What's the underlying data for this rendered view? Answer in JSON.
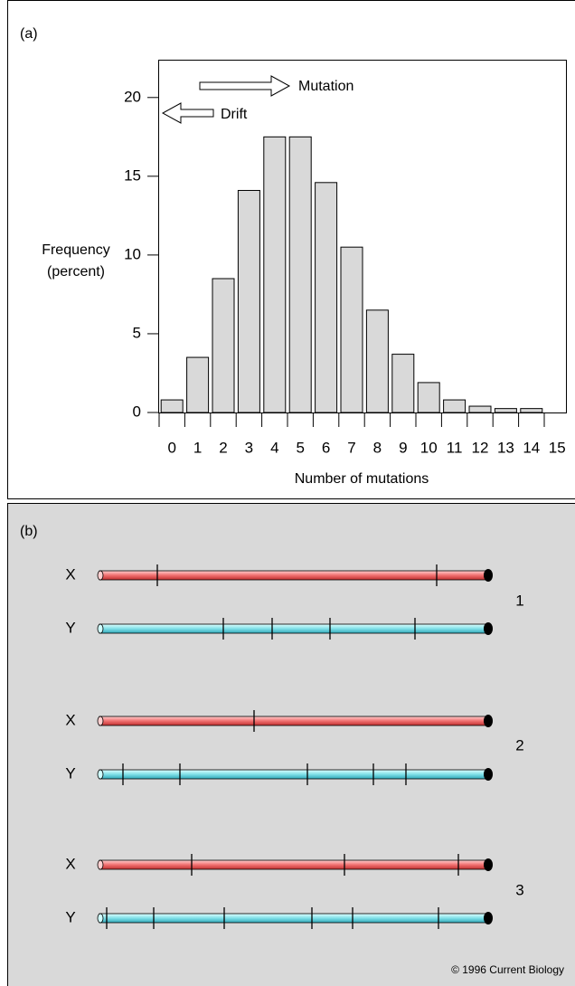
{
  "chart_data": {
    "type": "bar",
    "panel_label": "(a)",
    "xlabel": "Number of mutations",
    "ylabel": [
      "Frequency",
      "(percent)"
    ],
    "categories": [
      "0",
      "1",
      "2",
      "3",
      "4",
      "5",
      "6",
      "7",
      "8",
      "9",
      "10",
      "11",
      "12",
      "13",
      "14",
      "15"
    ],
    "values": [
      0.8,
      3.5,
      8.5,
      14.1,
      17.5,
      17.5,
      14.6,
      10.5,
      6.5,
      3.7,
      1.9,
      0.8,
      0.4,
      0.25,
      0.25,
      0
    ],
    "color": "#d9d9d9",
    "ylim": [
      0,
      22.4
    ],
    "yticks": [
      0,
      5,
      10,
      15,
      20
    ],
    "annotations": [
      "Mutation",
      "Drift"
    ]
  },
  "panel_b": {
    "label": "(b)",
    "pairs": [
      {
        "number": "1",
        "chromosomes": [
          "X",
          "Y"
        ]
      },
      {
        "number": "2",
        "chromosomes": [
          "X",
          "Y"
        ]
      },
      {
        "number": "3",
        "chromosomes": [
          "X",
          "Y"
        ]
      }
    ],
    "copyright": "© 1996 Current Biology"
  }
}
